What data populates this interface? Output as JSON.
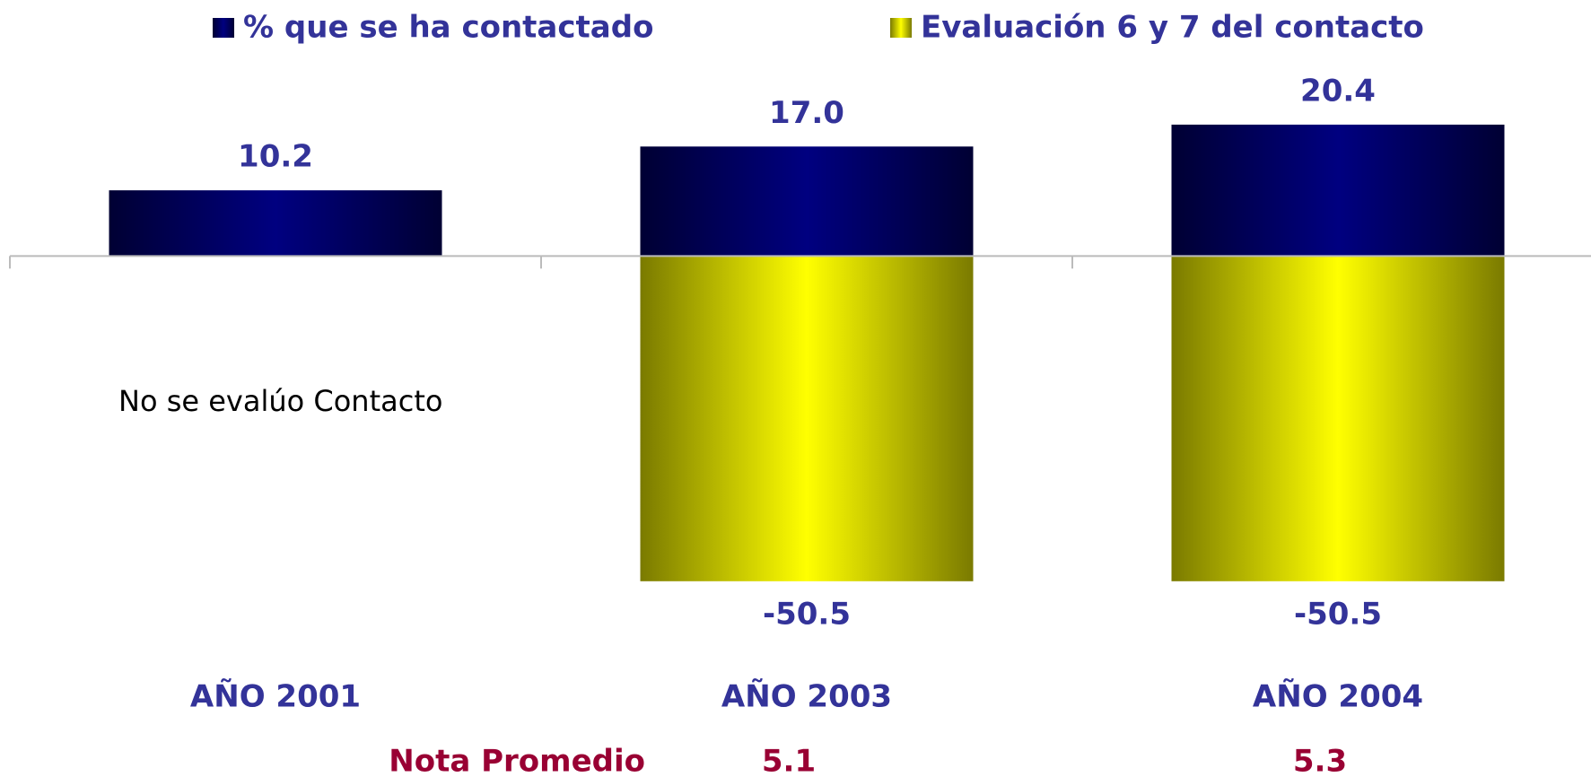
{
  "chart_data": {
    "type": "bar",
    "categories": [
      "AÑO 2001",
      "AÑO 2003",
      "AÑO 2004"
    ],
    "series": [
      {
        "name": "% que se ha contactado",
        "color": "#000080",
        "values": [
          10.2,
          17.0,
          20.4
        ],
        "value_labels": [
          "10.2",
          "17.0",
          "20.4"
        ]
      },
      {
        "name": "Evaluación 6 y 7 del contacto",
        "color": "#ffff00",
        "values": [
          null,
          -50.5,
          -50.5
        ],
        "value_labels": [
          null,
          "-50.5",
          "-50.5"
        ]
      }
    ],
    "ylim": [
      -60,
      30
    ],
    "annotations": [
      "No se evalúo Contacto"
    ],
    "notes": {
      "label": "Nota Promedio",
      "values": [
        null,
        5.1,
        5.3
      ]
    }
  }
}
